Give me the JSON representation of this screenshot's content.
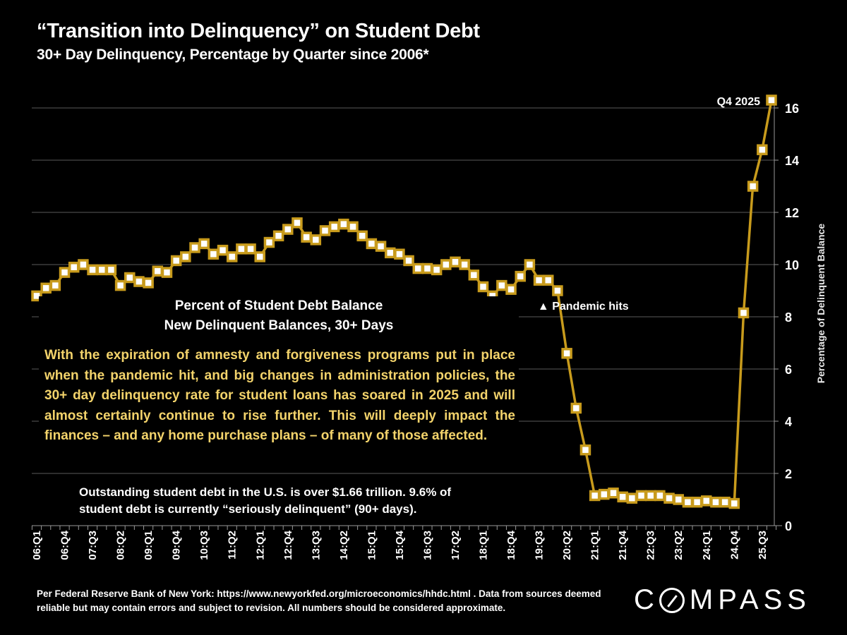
{
  "header": {
    "title": "“Transition into Delinquency” on Student Debt",
    "subtitle": "30+ Day Delinquency, Percentage by Quarter since 2006*"
  },
  "textbox": {
    "heading_line1": "Percent of Student Debt Balance",
    "heading_line2": "New Delinquent  Balances, 30+ Days",
    "body": "With the expiration of amnesty and forgiveness programs put in place when the pandemic hit, and big changes in administration policies, the 30+ day delinquency rate for student loans has soared in 2025 and will almost certainly continue to rise further. This will deeply impact the finances – and any home purchase plans – of many of those affected."
  },
  "note": "Outstanding student debt in the U.S. is over $1.66 trillion. 9.6% of student debt is currently “seriously delinquent” (90+ days).",
  "footer": "Per Federal Reserve Bank of New York: https://www.newyorkfed.org/microeconomics/hhdc.html . Data from sources deemed reliable but may contain errors and subject to revision. All numbers should be considered approximate.",
  "logo": {
    "before_o": "C",
    "after_o": "MPASS",
    "icon": "compass-slashed-o"
  },
  "colors": {
    "line": "#c89b1c",
    "marker_fill": "#ffffff",
    "body_text": "#f3d36b",
    "grid": "#5a5a5a",
    "background": "#000000"
  },
  "chart_data": {
    "type": "line",
    "title": "“Transition into Delinquency” on Student Debt",
    "subtitle": "30+ Day Delinquency, Percentage by Quarter since 2006*",
    "xlabel": "",
    "ylabel": "Percentage of Delinquent Balance",
    "y_axis_side": "right",
    "ylim": [
      0,
      16.5
    ],
    "yticks": [
      0,
      2,
      4,
      6,
      8,
      10,
      12,
      14,
      16
    ],
    "grid": true,
    "x_tick_labels": [
      "06:Q1",
      "06:Q4",
      "07:Q3",
      "08:Q2",
      "09:Q1",
      "09:Q4",
      "10:Q3",
      "11:Q2",
      "12:Q1",
      "12:Q4",
      "13:Q3",
      "14:Q2",
      "15:Q1",
      "15:Q4",
      "16:Q3",
      "17:Q2",
      "18:Q1",
      "18:Q4",
      "19:Q3",
      "20:Q2",
      "21:Q1",
      "21:Q4",
      "22:Q3",
      "23:Q2",
      "24:Q1",
      "24.Q4",
      "25.Q3"
    ],
    "x_tick_every": 3,
    "series": [
      {
        "name": "30+ Day Delinquency (%)",
        "x": [
          "06Q1",
          "06Q2",
          "06Q3",
          "06Q4",
          "07Q1",
          "07Q2",
          "07Q3",
          "07Q4",
          "08Q1",
          "08Q2",
          "08Q3",
          "08Q4",
          "09Q1",
          "09Q2",
          "09Q3",
          "09Q4",
          "10Q1",
          "10Q2",
          "10Q3",
          "10Q4",
          "11Q1",
          "11Q2",
          "11Q3",
          "11Q4",
          "12Q1",
          "12Q2",
          "12Q3",
          "12Q4",
          "13Q1",
          "13Q2",
          "13Q3",
          "13Q4",
          "14Q1",
          "14Q2",
          "14Q3",
          "14Q4",
          "15Q1",
          "15Q2",
          "15Q3",
          "15Q4",
          "16Q1",
          "16Q2",
          "16Q3",
          "16Q4",
          "17Q1",
          "17Q2",
          "17Q3",
          "17Q4",
          "18Q1",
          "18Q2",
          "18Q3",
          "18Q4",
          "19Q1",
          "19Q2",
          "19Q3",
          "19Q4",
          "20Q1",
          "20Q2",
          "20Q3",
          "20Q4",
          "21Q1",
          "21Q2",
          "21Q3",
          "21Q4",
          "22Q1",
          "22Q2",
          "22Q3",
          "22Q4",
          "23Q1",
          "23Q2",
          "23Q3",
          "23Q4",
          "24Q1",
          "24Q2",
          "24Q3",
          "24Q4",
          "25Q1",
          "25Q2",
          "25Q3",
          "25Q4"
        ],
        "values": [
          8.8,
          9.1,
          9.2,
          9.7,
          9.9,
          10.0,
          9.8,
          9.8,
          9.8,
          9.2,
          9.5,
          9.35,
          9.3,
          9.75,
          9.7,
          10.15,
          10.3,
          10.65,
          10.8,
          10.4,
          10.55,
          10.3,
          10.6,
          10.6,
          10.3,
          10.85,
          11.1,
          11.35,
          11.6,
          11.05,
          10.95,
          11.3,
          11.45,
          11.55,
          11.45,
          11.1,
          10.8,
          10.7,
          10.45,
          10.4,
          10.15,
          9.85,
          9.85,
          9.8,
          10.0,
          10.1,
          10.0,
          9.6,
          9.15,
          8.8,
          9.2,
          9.05,
          9.55,
          10.0,
          9.4,
          9.4,
          9.0,
          6.6,
          4.5,
          2.9,
          1.15,
          1.2,
          1.25,
          1.1,
          1.05,
          1.15,
          1.15,
          1.15,
          1.05,
          1.0,
          0.9,
          0.9,
          0.95,
          0.9,
          0.9,
          0.85,
          8.15,
          13.0,
          14.4,
          16.3
        ]
      }
    ],
    "annotations": [
      {
        "text": "Q4 2025",
        "at": "25Q4"
      },
      {
        "text": "▲ Pandemic hits",
        "at": "20Q1"
      }
    ]
  }
}
